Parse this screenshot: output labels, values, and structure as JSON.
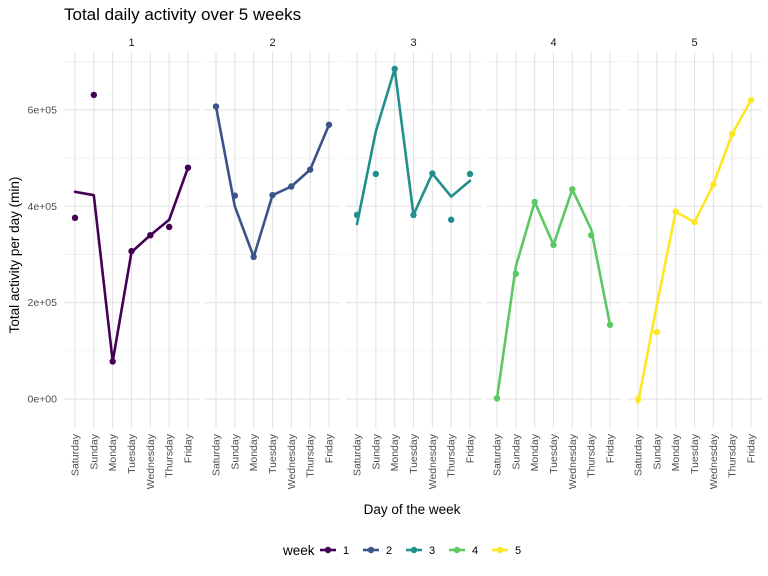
{
  "chart_data": {
    "type": "line",
    "title": "Total daily activity over 5 weeks",
    "xlabel": "Day of the week",
    "ylabel": "Total activity per day (min)",
    "ylim": [
      -60000,
      720000
    ],
    "yticks": [
      0,
      200000,
      400000,
      600000
    ],
    "ytick_labels": [
      "0e+00",
      "2e+05",
      "4e+05",
      "6e+05"
    ],
    "categories": [
      "Saturday",
      "Sunday",
      "Monday",
      "Tuesday",
      "Wednesday",
      "Thursday",
      "Friday"
    ],
    "facets": [
      "1",
      "2",
      "3",
      "4",
      "5"
    ],
    "legend_title": "week",
    "legend_position": "bottom",
    "series": [
      {
        "name": "1",
        "color": "#440154",
        "points": [
          376000,
          631000,
          78000,
          307000,
          340000,
          357000,
          480000
        ],
        "line": [
          430000,
          423000,
          78000,
          305000,
          340000,
          372000,
          480000
        ]
      },
      {
        "name": "2",
        "color": "#3B528B",
        "points": [
          607000,
          422000,
          295000,
          423000,
          441000,
          476000,
          569000
        ],
        "line": [
          607000,
          400000,
          295000,
          423000,
          441000,
          476000,
          569000
        ]
      },
      {
        "name": "3",
        "color": "#21908C",
        "points": [
          382000,
          467000,
          685000,
          382000,
          468000,
          372000,
          467000
        ],
        "line": [
          363000,
          555000,
          685000,
          382000,
          468000,
          420000,
          453000
        ]
      },
      {
        "name": "4",
        "color": "#5DC863",
        "points": [
          1400,
          260000,
          409000,
          320000,
          435000,
          340000,
          154000
        ],
        "line": [
          1400,
          275000,
          409000,
          320000,
          435000,
          352000,
          154000
        ]
      },
      {
        "name": "5",
        "color": "#FDE725",
        "points": [
          0,
          139000,
          389000,
          367000,
          445000,
          550000,
          620000
        ],
        "line": [
          -8000,
          195000,
          389000,
          367000,
          445000,
          550000,
          620000
        ]
      }
    ]
  }
}
